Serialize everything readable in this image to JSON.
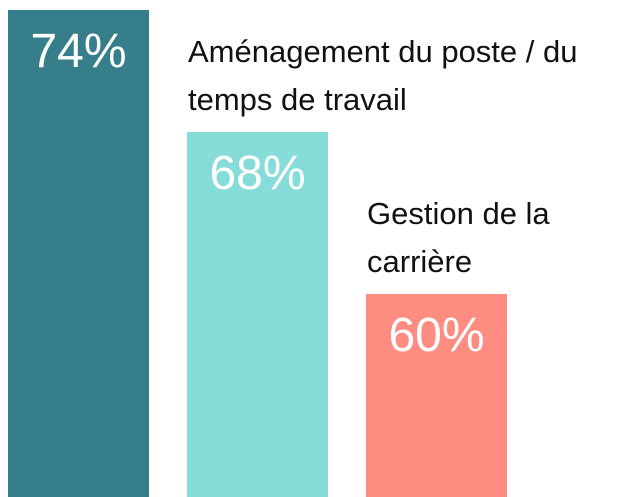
{
  "chart_data": {
    "type": "bar",
    "categories": [
      null,
      "Aménagement du poste / du temps de travail",
      "Gestion de la carrière"
    ],
    "values": [
      74,
      68,
      60
    ],
    "value_labels": [
      "74%",
      "68%",
      "60%"
    ],
    "colors": [
      "#367f8a",
      "#86dcd8",
      "#ff8c80"
    ],
    "ylim": [
      50,
      74.5
    ]
  }
}
